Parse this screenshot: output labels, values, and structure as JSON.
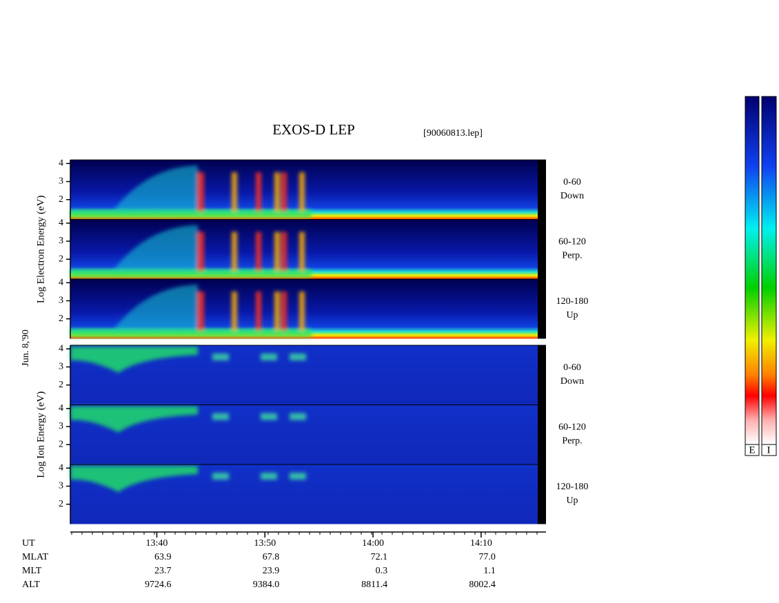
{
  "chart_data": {
    "type": "spectrogram",
    "title": "EXOS-D LEP",
    "subtitle": "[90060813.lep]",
    "date_label": "Jun. 8,'90",
    "groups": [
      {
        "ylabel": "Log  Electron  Energy  (eV)",
        "panels": [
          {
            "labels": [
              "0-60",
              "Down"
            ],
            "ylim": [
              0.9,
              4.2
            ],
            "yticks": [
              2,
              3,
              4
            ]
          },
          {
            "labels": [
              "60-120",
              "Perp."
            ],
            "ylim": [
              0.9,
              4.2
            ],
            "yticks": [
              2,
              3,
              4
            ]
          },
          {
            "labels": [
              "120-180",
              "Up"
            ],
            "ylim": [
              0.9,
              4.2
            ],
            "yticks": [
              2,
              3,
              4
            ]
          }
        ]
      },
      {
        "ylabel": "Log  Ion  Energy  (eV)",
        "panels": [
          {
            "labels": [
              "0-60",
              "Down"
            ],
            "ylim": [
              0.9,
              4.2
            ],
            "yticks": [
              2,
              3,
              4
            ]
          },
          {
            "labels": [
              "60-120",
              "Perp."
            ],
            "ylim": [
              0.9,
              4.2
            ],
            "yticks": [
              2,
              3,
              4
            ]
          },
          {
            "labels": [
              "120-180",
              "Up"
            ],
            "ylim": [
              0.9,
              4.2
            ],
            "yticks": [
              2,
              3,
              4
            ]
          }
        ]
      }
    ],
    "xlim": [
      812,
      856
    ],
    "xticks": [
      {
        "value": 820,
        "label": "13:40"
      },
      {
        "value": 830,
        "label": "13:50"
      },
      {
        "value": 840,
        "label": "14:00"
      },
      {
        "value": 850,
        "label": "14:10"
      }
    ],
    "orbit": {
      "labels": [
        "UT",
        "MLAT",
        "MLT",
        "ALT"
      ],
      "rows": [
        [
          "63.9",
          "67.8",
          "72.1",
          "77.0"
        ],
        [
          "23.7",
          "23.9",
          "0.3",
          "1.1"
        ],
        [
          "9724.6",
          "9384.0",
          "8811.4",
          "8002.4"
        ]
      ]
    },
    "colorbar_labels": [
      "E",
      "I"
    ]
  }
}
